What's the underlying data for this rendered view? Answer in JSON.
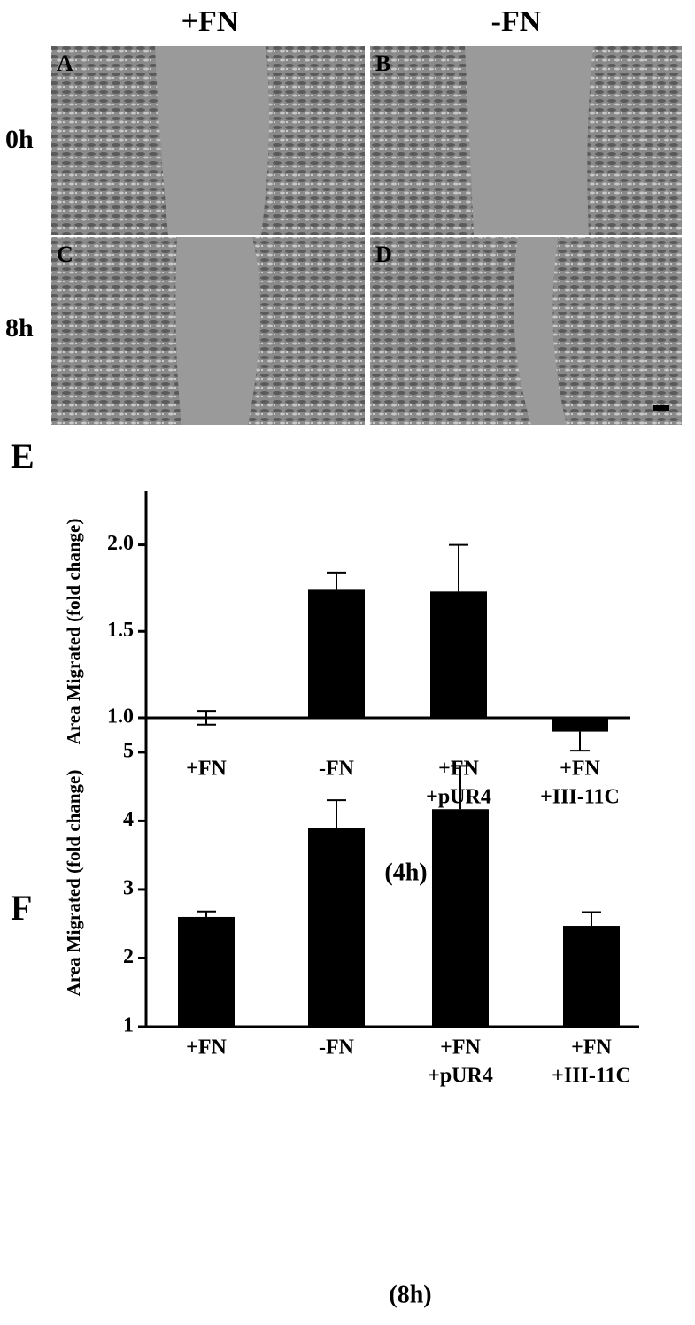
{
  "panels": {
    "column_labels": [
      "+FN",
      "-FN"
    ],
    "row_labels": [
      "0h",
      "8h"
    ],
    "image_labels": [
      "A",
      "B",
      "C",
      "D"
    ]
  },
  "chart_data": [
    {
      "type": "bar",
      "panel_label": "E",
      "ylabel": "Area Migrated (fold change)",
      "xlabel": "(4h)",
      "categories": [
        [
          "+FN"
        ],
        [
          "-FN"
        ],
        [
          "+FN",
          "+pUR4"
        ],
        [
          "+FN",
          "+III-11C"
        ]
      ],
      "values": [
        1.0,
        1.74,
        1.73,
        0.92
      ],
      "errors": [
        0.04,
        0.1,
        0.27,
        0.11
      ],
      "ylim": [
        0.79,
        2.31
      ],
      "yticks": [
        {
          "value": 1,
          "label": "1.0"
        },
        {
          "value": 1.5,
          "label": "1.5"
        },
        {
          "value": 2,
          "label": "2.0"
        }
      ],
      "baseline": 1,
      "color": "#000000"
    },
    {
      "type": "bar",
      "panel_label": "F",
      "ylabel": "Area Migrated (fold change)",
      "xlabel": "(8h)",
      "categories": [
        [
          "+FN"
        ],
        [
          "-FN"
        ],
        [
          "+FN",
          "+pUR4"
        ],
        [
          "+FN",
          "+III-11C"
        ]
      ],
      "values": [
        2.6,
        3.9,
        4.17,
        2.47
      ],
      "errors": [
        0.08,
        0.4,
        0.63,
        0.2
      ],
      "ylim": [
        1,
        5.45
      ],
      "yticks": [
        1,
        2,
        3,
        4,
        5
      ],
      "baseline": 1,
      "color": "#000000"
    }
  ]
}
